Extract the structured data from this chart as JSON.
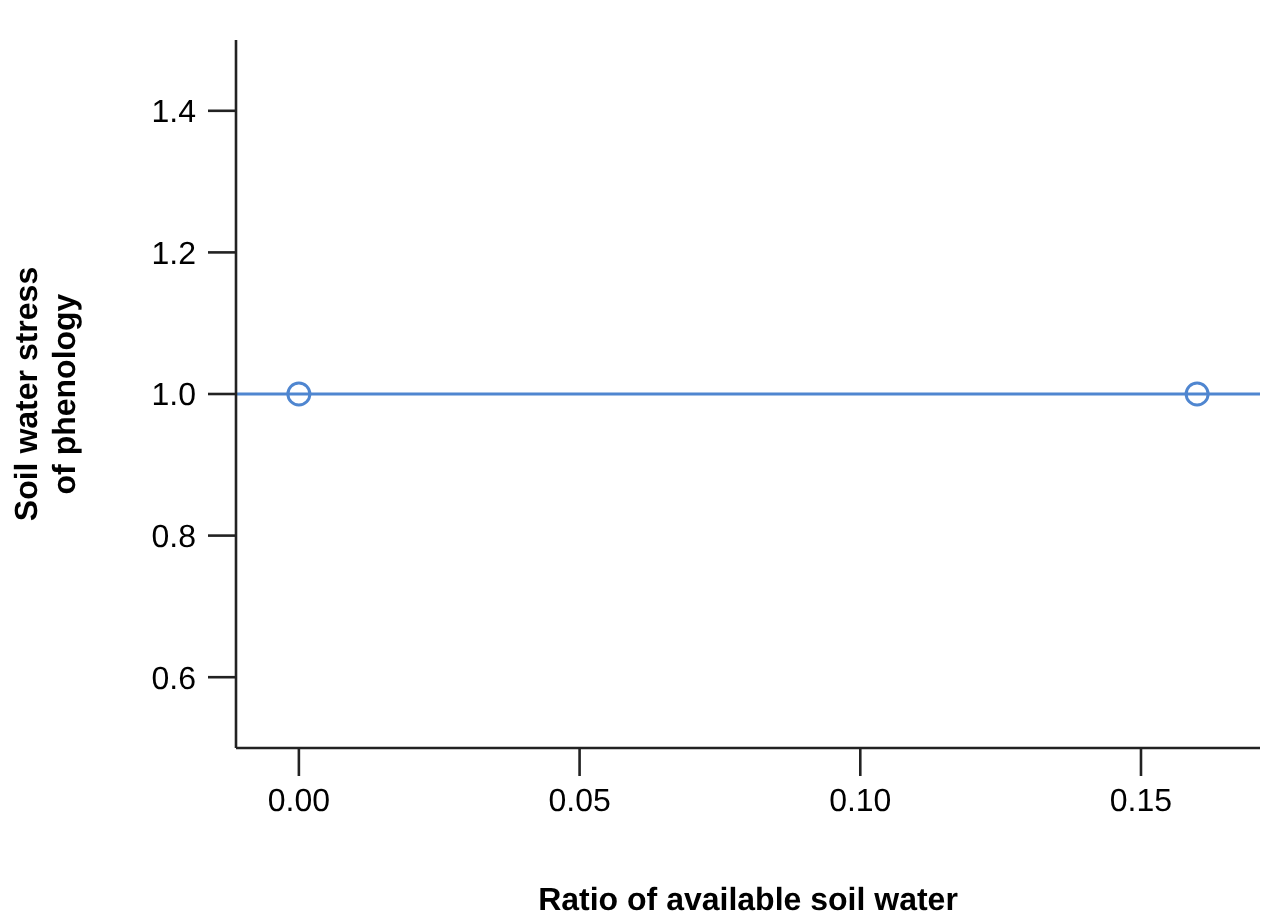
{
  "chart_data": {
    "type": "scatter",
    "xlabel": "Ratio of available soil water",
    "ylabel": "Soil water stress\nof phenology",
    "x": [
      0,
      0.16
    ],
    "series": [
      {
        "color": "#4f86d0",
        "values": [
          1,
          1
        ]
      }
    ],
    "marker": "circle",
    "ref_lines": [
      {
        "axis": "y",
        "value": 1,
        "color": "#4f86d0"
      }
    ],
    "xlim": [
      -0.0112,
      0.1712
    ],
    "xticks": [
      {
        "value": 0,
        "label": "0.00"
      },
      {
        "value": 0.05,
        "label": "0.05"
      },
      {
        "value": 0.1,
        "label": "0.10"
      },
      {
        "value": 0.15,
        "label": "0.15"
      }
    ],
    "ylim": [
      0.5,
      1.5
    ],
    "yticks": [
      {
        "value": 0.6,
        "label": "0.6"
      },
      {
        "value": 0.8,
        "label": "0.8"
      },
      {
        "value": 1,
        "label": "1.0"
      },
      {
        "value": 1.2,
        "label": "1.2"
      },
      {
        "value": 1.4,
        "label": "1.4"
      }
    ]
  }
}
